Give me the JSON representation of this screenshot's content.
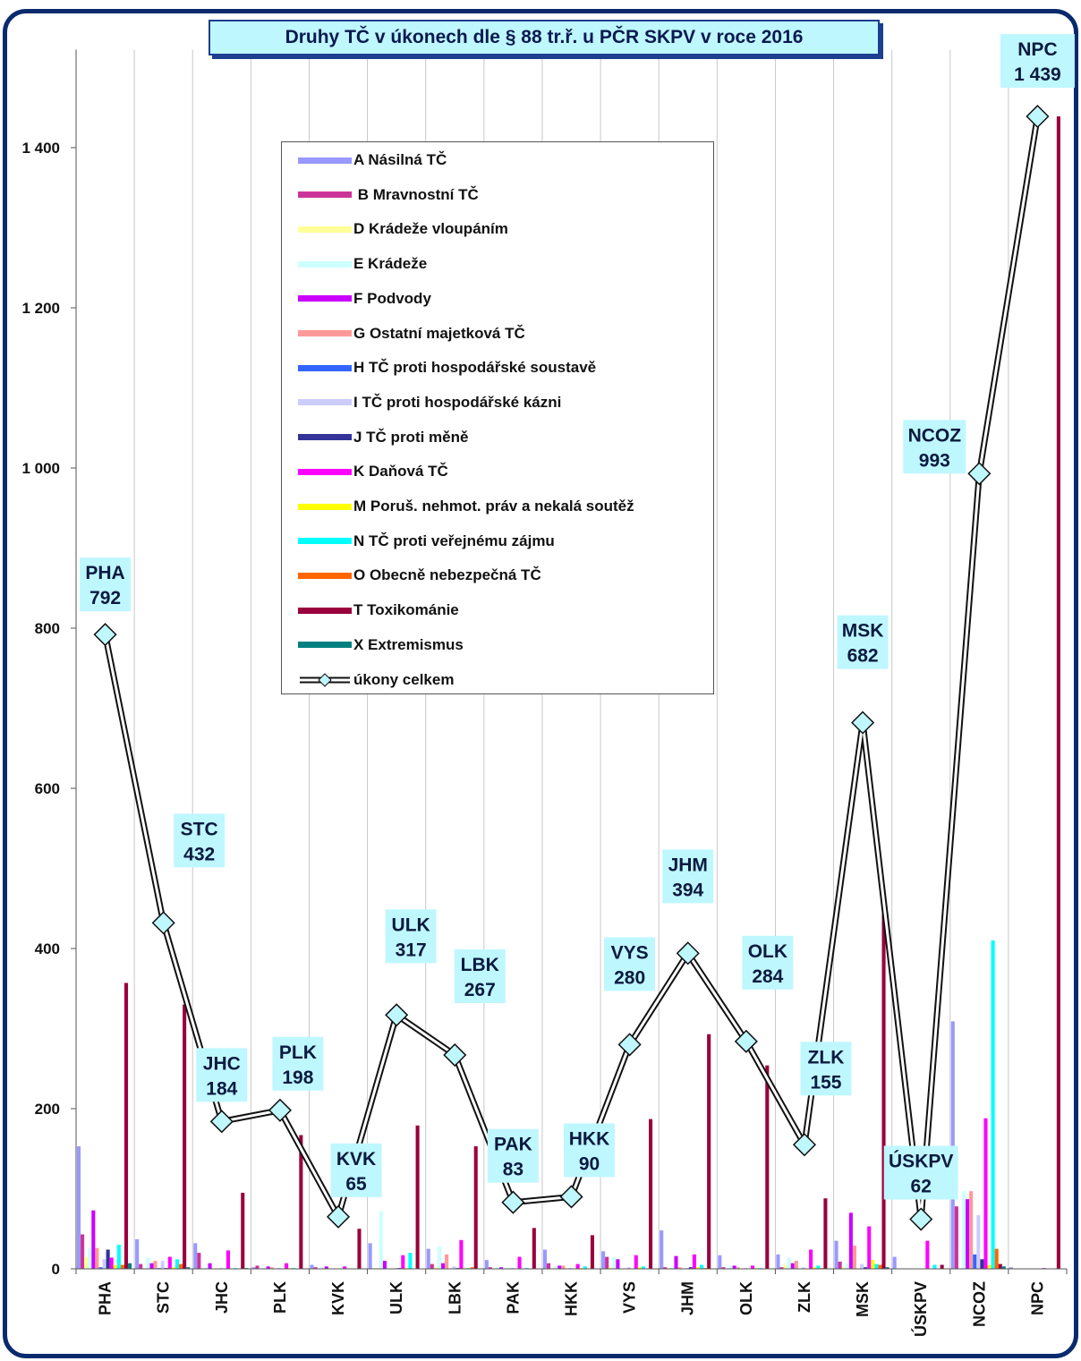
{
  "chart_data": {
    "type": "bar",
    "title": "Druhy TČ v úkonech dle § 88 tr.ř.  u PČR SKPV v roce 2016",
    "xlabel": "",
    "ylabel": "",
    "ylim": [
      0,
      1500
    ],
    "yticks": [
      0,
      200,
      400,
      600,
      800,
      1000,
      1200,
      1400
    ],
    "ytick_labels": [
      "0",
      "200",
      "400",
      "600",
      "800",
      "1 000",
      "1 200",
      "1 400"
    ],
    "grid": "vertical lines between categories",
    "legend_position": "top-left, inside plot",
    "categories": [
      "PHA",
      "STC",
      "JHC",
      "PLK",
      "KVK",
      "ULK",
      "LBK",
      "PAK",
      "HKK",
      "VYS",
      "JHM",
      "OLK",
      "ZLK",
      "MSK",
      "ÚSKPV",
      "NCOZ",
      "NPC"
    ],
    "series": [
      {
        "name": "A Násilná TČ",
        "color": "#9999ff",
        "values": [
          153,
          37,
          32,
          2,
          5,
          32,
          25,
          11,
          24,
          22,
          48,
          17,
          18,
          35,
          15,
          309,
          2
        ]
      },
      {
        "name": " B Mravnostní TČ",
        "color": "#cc3399",
        "values": [
          43,
          6,
          20,
          4,
          2,
          0,
          6,
          2,
          7,
          15,
          2,
          2,
          2,
          9,
          0,
          78,
          0
        ]
      },
      {
        "name": "D Krádeže vloupáním",
        "color": "#ffff99",
        "values": [
          15,
          1,
          1,
          0,
          0,
          1,
          2,
          0,
          1,
          2,
          1,
          0,
          5,
          2,
          0,
          0,
          0
        ]
      },
      {
        "name": "E Krádeže",
        "color": "#ccffff",
        "values": [
          26,
          14,
          2,
          1,
          2,
          72,
          28,
          2,
          4,
          15,
          2,
          4,
          14,
          7,
          0,
          97,
          0
        ]
      },
      {
        "name": "F Podvody",
        "color": "#cc00ff",
        "values": [
          73,
          7,
          7,
          3,
          3,
          10,
          7,
          2,
          4,
          12,
          16,
          4,
          7,
          70,
          0,
          87,
          0
        ]
      },
      {
        "name": "G Ostatní majetková TČ",
        "color": "#ff9999",
        "values": [
          26,
          10,
          0,
          2,
          0,
          0,
          18,
          0,
          4,
          0,
          2,
          2,
          10,
          29,
          0,
          97,
          0
        ]
      },
      {
        "name": "H TČ proti hospodářské soustavě",
        "color": "#3366ff",
        "values": [
          2,
          1,
          0,
          0,
          0,
          0,
          0,
          0,
          0,
          0,
          0,
          0,
          0,
          0,
          0,
          18,
          0
        ]
      },
      {
        "name": "I TČ proti hospodářské kázni",
        "color": "#ccccff",
        "values": [
          12,
          10,
          1,
          1,
          0,
          1,
          3,
          1,
          1,
          2,
          1,
          1,
          2,
          6,
          0,
          67,
          0
        ]
      },
      {
        "name": "J TČ proti měně",
        "color": "#333399",
        "values": [
          24,
          1,
          0,
          0,
          0,
          1,
          1,
          0,
          0,
          0,
          2,
          0,
          0,
          2,
          0,
          12,
          0
        ]
      },
      {
        "name": "K Daňová TČ",
        "color": "#ff00ff",
        "values": [
          14,
          15,
          23,
          7,
          3,
          17,
          36,
          15,
          6,
          17,
          18,
          4,
          24,
          53,
          35,
          188,
          1
        ]
      },
      {
        "name": "M Poruš. nehmot. práv a nekalá soutěž",
        "color": "#ffff00",
        "values": [
          5,
          2,
          0,
          1,
          0,
          1,
          1,
          0,
          1,
          2,
          2,
          1,
          2,
          11,
          0,
          5,
          0
        ]
      },
      {
        "name": "N TČ proti veřejnému zájmu",
        "color": "#00ffff",
        "values": [
          30,
          12,
          1,
          1,
          0,
          20,
          1,
          1,
          3,
          3,
          5,
          1,
          4,
          6,
          5,
          410,
          0
        ]
      },
      {
        "name": "O Obecně nebezpečná TČ",
        "color": "#ff6600",
        "values": [
          5,
          6,
          0,
          0,
          0,
          0,
          2,
          0,
          0,
          0,
          1,
          0,
          1,
          5,
          0,
          25,
          0
        ]
      },
      {
        "name": "T Toxikománie",
        "color": "#99003d",
        "values": [
          357,
          330,
          95,
          167,
          50,
          179,
          153,
          51,
          42,
          187,
          293,
          254,
          88,
          474,
          5,
          6,
          1439
        ]
      },
      {
        "name": "X Extremismus",
        "color": "#008080",
        "values": [
          7,
          2,
          1,
          0,
          0,
          0,
          0,
          0,
          0,
          0,
          0,
          0,
          0,
          2,
          0,
          3,
          0
        ]
      }
    ],
    "total_series": {
      "name": "úkony celkem",
      "values": [
        792,
        432,
        184,
        198,
        65,
        317,
        267,
        83,
        90,
        280,
        394,
        284,
        155,
        682,
        62,
        993,
        1439
      ],
      "point_labels": [
        [
          "PHA",
          "792"
        ],
        [
          "STC",
          "432"
        ],
        [
          "JHC",
          "184"
        ],
        [
          "PLK",
          "198"
        ],
        [
          "KVK",
          "65"
        ],
        [
          "ULK",
          "317"
        ],
        [
          "LBK",
          "267"
        ],
        [
          "PAK",
          "83"
        ],
        [
          "HKK",
          "90"
        ],
        [
          "VYS",
          "280"
        ],
        [
          "JHM",
          "394"
        ],
        [
          "OLK",
          "284"
        ],
        [
          "ZLK",
          "155"
        ],
        [
          "MSK",
          "682"
        ],
        [
          "ÚSKPV",
          "62"
        ],
        [
          "NCOZ",
          "993"
        ],
        [
          "NPC",
          "1 439"
        ]
      ]
    }
  }
}
